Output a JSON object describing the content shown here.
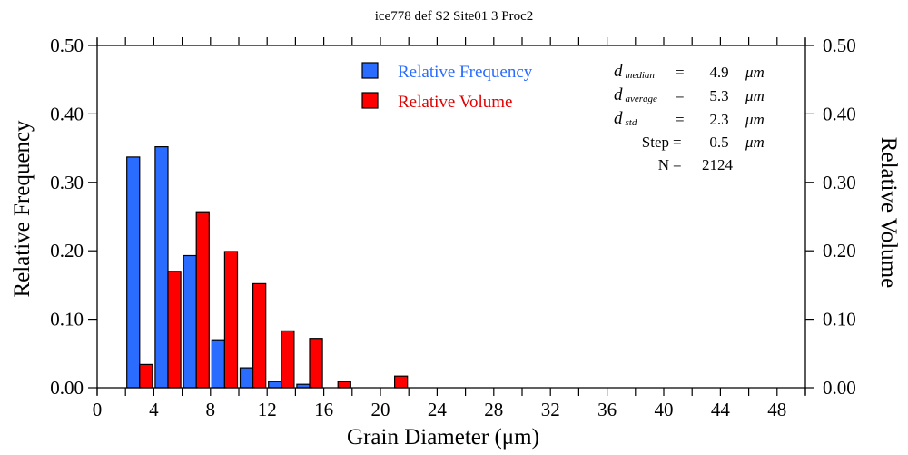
{
  "chart_data": {
    "type": "bar",
    "title": "ice778 def S2 Site01 3 Proc2",
    "xlabel": "Grain Diameter (μm)",
    "ylabel_left": "Relative Frequency",
    "ylabel_right": "Relative Volume",
    "xlim": [
      0,
      50
    ],
    "ylim": [
      0,
      0.5
    ],
    "x_ticks": [
      "0",
      "4",
      "8",
      "12",
      "16",
      "20",
      "24",
      "28",
      "32",
      "36",
      "40",
      "44",
      "48"
    ],
    "x_tick_values": [
      0,
      4,
      8,
      12,
      16,
      20,
      24,
      28,
      32,
      36,
      40,
      44,
      48
    ],
    "x_minor_step": 2,
    "y_ticks": [
      "0.00",
      "0.10",
      "0.20",
      "0.30",
      "0.40",
      "0.50"
    ],
    "y_tick_values": [
      0,
      0.1,
      0.2,
      0.3,
      0.4,
      0.5
    ],
    "bin_starts": [
      2,
      4,
      6,
      8,
      10,
      12,
      14,
      16,
      18,
      20
    ],
    "bin_width": 2,
    "series": [
      {
        "name": "Relative Frequency",
        "color": "#2a6cff",
        "values": [
          0.337,
          0.352,
          0.193,
          0.07,
          0.029,
          0.009,
          0.005,
          0,
          0,
          0
        ]
      },
      {
        "name": "Relative Volume",
        "color": "#ff0000",
        "values": [
          0.034,
          0.17,
          0.257,
          0.199,
          0.152,
          0.083,
          0.072,
          0.009,
          0,
          0.017
        ]
      }
    ],
    "legend_position": "top-center",
    "grid": false
  },
  "stats": [
    {
      "symbol": "d",
      "sub": "median",
      "eq": "=",
      "value": "4.9",
      "unit": "μm"
    },
    {
      "symbol": "d",
      "sub": "average",
      "eq": "=",
      "value": "5.3",
      "unit": "μm"
    },
    {
      "symbol": "d",
      "sub": "std",
      "eq": "=",
      "value": "2.3",
      "unit": "μm"
    },
    {
      "symbol": "Step",
      "sub": "",
      "eq": "=",
      "value": "0.5",
      "unit": "μm"
    },
    {
      "symbol": "N",
      "sub": "",
      "eq": "=",
      "value": "2124",
      "unit": ""
    }
  ]
}
